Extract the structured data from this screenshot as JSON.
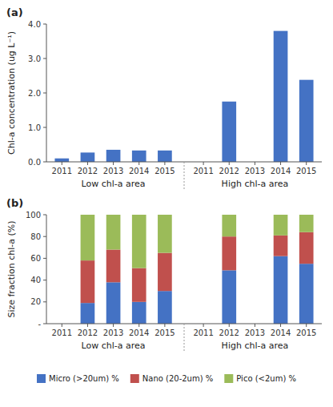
{
  "chart_data": [
    {
      "type": "bar",
      "title": "(a)",
      "ylabel": "Chl-a concentration (ug L⁻¹)",
      "categories": [
        "2011",
        "2012",
        "2013",
        "2014",
        "2015",
        "2011",
        "2012",
        "2013",
        "2014",
        "2015"
      ],
      "group_labels": [
        "Low chl-a area",
        "High chl-a area"
      ],
      "values": [
        0.1,
        0.27,
        0.35,
        0.33,
        0.33,
        0.0,
        1.75,
        0.0,
        3.8,
        2.38
      ],
      "color": "#4472C4",
      "ylim": [
        0,
        4.0
      ],
      "yticks": [
        {
          "value": 0.0,
          "label": "0.0"
        },
        {
          "value": 1.0,
          "label": "1.0"
        },
        {
          "value": 2.0,
          "label": "2.0"
        },
        {
          "value": 3.0,
          "label": "3.0"
        },
        {
          "value": 4.0,
          "label": "4.0"
        }
      ],
      "grid": false
    },
    {
      "type": "bar",
      "title": "(b)",
      "stacked": true,
      "ylabel": "Size fraction chl-a (%)",
      "categories": [
        "2011",
        "2012",
        "2013",
        "2014",
        "2015",
        "2011",
        "2012",
        "2013",
        "2014",
        "2015"
      ],
      "group_labels": [
        "Low chl-a area",
        "High chl-a area"
      ],
      "series": [
        {
          "name": "Micro (>20um) %",
          "color": "#4472C4",
          "values": [
            0,
            19,
            38,
            20,
            30,
            0,
            49,
            0,
            62,
            55
          ]
        },
        {
          "name": "Nano (20-2um) %",
          "color": "#C0504D",
          "values": [
            0,
            39,
            30,
            31,
            35,
            0,
            31,
            0,
            19,
            29
          ]
        },
        {
          "name": "Pico (<2um) %",
          "color": "#9BBB59",
          "values": [
            0,
            42,
            32,
            49,
            35,
            0,
            20,
            0,
            19,
            16
          ]
        }
      ],
      "ylim": [
        0,
        100
      ],
      "yticks": [
        {
          "value": 0,
          "label": "-"
        },
        20,
        40,
        60,
        80,
        100
      ],
      "grid": false,
      "legend": "bottom"
    }
  ]
}
